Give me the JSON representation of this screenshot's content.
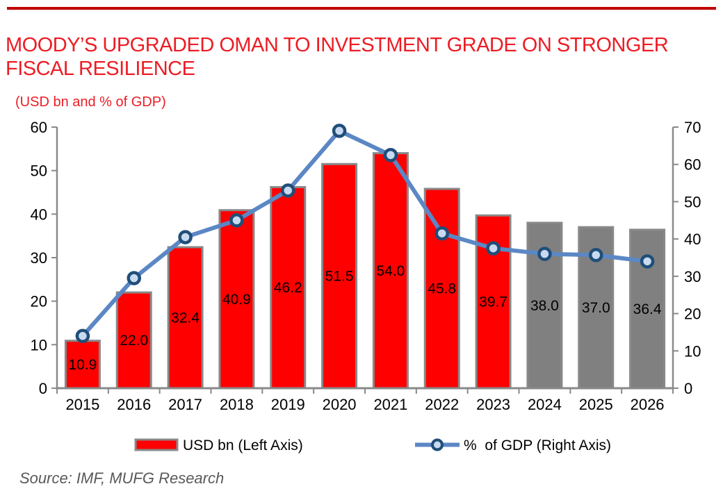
{
  "header": {
    "rule_color": "#C00000",
    "title_color": "#ED1C24",
    "title_line1": "MOODY’S UPGRADED OMAN TO INVESTMENT GRADE ON STRONGER",
    "title_line2": "FISCAL RESILIENCE",
    "subtitle": "(USD bn and % of GDP)"
  },
  "chart_data": {
    "type": "combo-bar-line",
    "title": "(USD bn and % of GDP)",
    "categories": [
      "2015",
      "2016",
      "2017",
      "2018",
      "2019",
      "2020",
      "2021",
      "2022",
      "2023",
      "2024",
      "2025",
      "2026"
    ],
    "series": [
      {
        "name": "USD bn (Left Axis)",
        "type": "bar",
        "axis": "left",
        "values": [
          10.9,
          22.0,
          32.4,
          40.9,
          46.2,
          51.5,
          54.0,
          45.8,
          39.7,
          38.0,
          37.0,
          36.4
        ],
        "value_labels": [
          "10.9",
          "22.0",
          "32.4",
          "40.9",
          "46.2",
          "51.5",
          "54.0",
          "45.8",
          "39.7",
          "38.0",
          "37.0",
          "36.4"
        ],
        "forecast_from_index": 9
      },
      {
        "name": "% of GDP (Right Axis)",
        "type": "line",
        "axis": "right",
        "values": [
          14,
          29.5,
          40.5,
          45,
          53,
          69,
          62.5,
          41.5,
          37.5,
          36,
          35.7,
          34
        ]
      }
    ],
    "left_axis": {
      "range": [
        0,
        60
      ],
      "step": 10,
      "ticks": [
        "0",
        "10",
        "20",
        "30",
        "40",
        "50",
        "60"
      ]
    },
    "right_axis": {
      "range": [
        0,
        70
      ],
      "step": 10,
      "ticks": [
        "0",
        "10",
        "20",
        "30",
        "40",
        "50",
        "60",
        "70"
      ]
    },
    "grid": false,
    "legend_position": "bottom",
    "colors": {
      "bar_actual": "#FF0000",
      "bar_forecast": "#808080",
      "bar_border": "#898989",
      "line": "#5B87C5",
      "marker_fill": "#C9DAF0",
      "marker_border": "#1F4E79",
      "axis": "#898989",
      "text": "#000000"
    }
  },
  "legend": {
    "items": [
      {
        "label": "USD bn (Left Axis)",
        "swatch": "bar"
      },
      {
        "label": "%  of GDP (Right Axis)",
        "swatch": "line-marker"
      }
    ]
  },
  "source": "Source: IMF, MUFG Research"
}
